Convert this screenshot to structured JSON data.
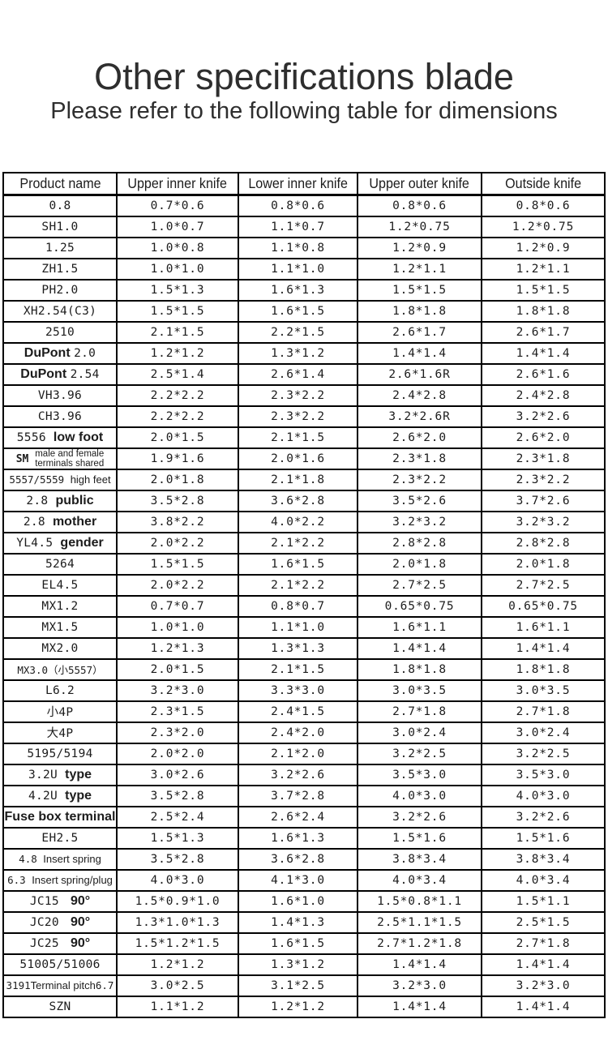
{
  "colors": {
    "text": "#1c1c1c",
    "title": "#2e2e2e",
    "border": "#000000",
    "background": "#ffffff"
  },
  "header": {
    "title": "Other specifications blade",
    "subtitle": "Please refer to the following table for dimensions"
  },
  "table": {
    "columns": [
      "Product name",
      "Upper inner knife",
      "Lower inner knife",
      "Upper outer knife",
      "Outside knife"
    ],
    "rows": [
      {
        "name": [
          {
            "t": "0.8",
            "s": "m"
          }
        ],
        "values": [
          "0.7*0.6",
          "0.8*0.6",
          "0.8*0.6",
          "0.8*0.6"
        ]
      },
      {
        "name": [
          {
            "t": "SH1.0",
            "s": "m"
          }
        ],
        "values": [
          "1.0*0.7",
          "1.1*0.7",
          "1.2*0.75",
          "1.2*0.75"
        ]
      },
      {
        "name": [
          {
            "t": "1.25",
            "s": "m"
          }
        ],
        "values": [
          "1.0*0.8",
          "1.1*0.8",
          "1.2*0.9",
          "1.2*0.9"
        ]
      },
      {
        "name": [
          {
            "t": "ZH1.5",
            "s": "m"
          }
        ],
        "values": [
          "1.0*1.0",
          "1.1*1.0",
          "1.2*1.1",
          "1.2*1.1"
        ]
      },
      {
        "name": [
          {
            "t": "PH2.0",
            "s": "m"
          }
        ],
        "values": [
          "1.5*1.3",
          "1.6*1.3",
          "1.5*1.5",
          "1.5*1.5"
        ]
      },
      {
        "name": [
          {
            "t": "XH2.54(C3)",
            "s": "m"
          }
        ],
        "values": [
          "1.5*1.5",
          "1.6*1.5",
          "1.8*1.8",
          "1.8*1.8"
        ]
      },
      {
        "name": [
          {
            "t": "2510",
            "s": "m"
          }
        ],
        "values": [
          "2.1*1.5",
          "2.2*1.5",
          "2.6*1.7",
          "2.6*1.7"
        ]
      },
      {
        "name": [
          {
            "t": "DuPont ",
            "s": "b"
          },
          {
            "t": "2.0",
            "s": "m"
          }
        ],
        "values": [
          "1.2*1.2",
          "1.3*1.2",
          "1.4*1.4",
          "1.4*1.4"
        ]
      },
      {
        "name": [
          {
            "t": "DuPont ",
            "s": "b"
          },
          {
            "t": "2.54",
            "s": "m"
          }
        ],
        "values": [
          "2.5*1.4",
          "2.6*1.4",
          "2.6*1.6R",
          "2.6*1.6"
        ]
      },
      {
        "name": [
          {
            "t": "VH3.96",
            "s": "m"
          }
        ],
        "values": [
          "2.2*2.2",
          "2.3*2.2",
          "2.4*2.8",
          "2.4*2.8"
        ]
      },
      {
        "name": [
          {
            "t": "CH3.96",
            "s": "m"
          }
        ],
        "values": [
          "2.2*2.2",
          "2.3*2.2",
          "3.2*2.6R",
          "3.2*2.6"
        ]
      },
      {
        "name": [
          {
            "t": "5556 ",
            "s": "m"
          },
          {
            "t": "low foot",
            "s": "b"
          }
        ],
        "values": [
          "2.0*1.5",
          "2.1*1.5",
          "2.6*2.0",
          "2.6*2.0"
        ]
      },
      {
        "name": [
          {
            "t": "SM ",
            "s": "mb"
          },
          {
            "t": "male and female\nterminals shared",
            "s": "c2"
          }
        ],
        "values": [
          "1.9*1.6",
          "2.0*1.6",
          "2.3*1.8",
          "2.3*1.8"
        ]
      },
      {
        "name": [
          {
            "t": "5557/5559 ",
            "s": "m2"
          },
          {
            "t": "high feet",
            "s": "c"
          }
        ],
        "values": [
          "2.0*1.8",
          "2.1*1.8",
          "2.3*2.2",
          "2.3*2.2"
        ]
      },
      {
        "name": [
          {
            "t": "2.8 ",
            "s": "m"
          },
          {
            "t": "public",
            "s": "b"
          }
        ],
        "values": [
          "3.5*2.8",
          "3.6*2.8",
          "3.5*2.6",
          "3.7*2.6"
        ]
      },
      {
        "name": [
          {
            "t": "2.8 ",
            "s": "m"
          },
          {
            "t": "mother",
            "s": "b"
          }
        ],
        "values": [
          "3.8*2.2",
          "4.0*2.2",
          "3.2*3.2",
          "3.2*3.2"
        ]
      },
      {
        "name": [
          {
            "t": "YL4.5 ",
            "s": "m"
          },
          {
            "t": "gender",
            "s": "b"
          }
        ],
        "values": [
          "2.0*2.2",
          "2.1*2.2",
          "2.8*2.8",
          "2.8*2.8"
        ]
      },
      {
        "name": [
          {
            "t": "5264",
            "s": "m"
          }
        ],
        "values": [
          "1.5*1.5",
          "1.6*1.5",
          "2.0*1.8",
          "2.0*1.8"
        ]
      },
      {
        "name": [
          {
            "t": "EL4.5",
            "s": "m"
          }
        ],
        "values": [
          "2.0*2.2",
          "2.1*2.2",
          "2.7*2.5",
          "2.7*2.5"
        ]
      },
      {
        "name": [
          {
            "t": "MX1.2",
            "s": "m"
          }
        ],
        "values": [
          "0.7*0.7",
          "0.8*0.7",
          "0.65*0.75",
          "0.65*0.75"
        ]
      },
      {
        "name": [
          {
            "t": "MX1.5",
            "s": "m"
          }
        ],
        "values": [
          "1.0*1.0",
          "1.1*1.0",
          "1.6*1.1",
          "1.6*1.1"
        ]
      },
      {
        "name": [
          {
            "t": "MX2.0",
            "s": "m"
          }
        ],
        "values": [
          "1.2*1.3",
          "1.3*1.3",
          "1.4*1.4",
          "1.4*1.4"
        ]
      },
      {
        "name": [
          {
            "t": "MX3.0（小5557）",
            "s": "m2"
          }
        ],
        "values": [
          "2.0*1.5",
          "2.1*1.5",
          "1.8*1.8",
          "1.8*1.8"
        ]
      },
      {
        "name": [
          {
            "t": "L6.2",
            "s": "m"
          }
        ],
        "values": [
          "3.2*3.0",
          "3.3*3.0",
          "3.0*3.5",
          "3.0*3.5"
        ]
      },
      {
        "name": [
          {
            "t": "小4P",
            "s": "m"
          }
        ],
        "values": [
          "2.3*1.5",
          "2.4*1.5",
          "2.7*1.8",
          "2.7*1.8"
        ]
      },
      {
        "name": [
          {
            "t": "大4P",
            "s": "m"
          }
        ],
        "values": [
          "2.3*2.0",
          "2.4*2.0",
          "3.0*2.4",
          "3.0*2.4"
        ]
      },
      {
        "name": [
          {
            "t": "5195/5194",
            "s": "m"
          }
        ],
        "values": [
          "2.0*2.0",
          "2.1*2.0",
          "3.2*2.5",
          "3.2*2.5"
        ]
      },
      {
        "name": [
          {
            "t": "3.2U ",
            "s": "m"
          },
          {
            "t": "type",
            "s": "b"
          }
        ],
        "values": [
          "3.0*2.6",
          "3.2*2.6",
          "3.5*3.0",
          "3.5*3.0"
        ]
      },
      {
        "name": [
          {
            "t": "4.2U ",
            "s": "m"
          },
          {
            "t": "type",
            "s": "b"
          }
        ],
        "values": [
          "3.5*2.8",
          "3.7*2.8",
          "4.0*3.0",
          "4.0*3.0"
        ]
      },
      {
        "name": [
          {
            "t": "Fuse box terminal",
            "s": "b"
          }
        ],
        "values": [
          "2.5*2.4",
          "2.6*2.4",
          "3.2*2.6",
          "3.2*2.6"
        ]
      },
      {
        "name": [
          {
            "t": "EH2.5",
            "s": "m"
          }
        ],
        "values": [
          "1.5*1.3",
          "1.6*1.3",
          "1.5*1.6",
          "1.5*1.6"
        ]
      },
      {
        "name": [
          {
            "t": "4.8 ",
            "s": "m2"
          },
          {
            "t": "Insert spring",
            "s": "c"
          }
        ],
        "values": [
          "3.5*2.8",
          "3.6*2.8",
          "3.8*3.4",
          "3.8*3.4"
        ]
      },
      {
        "name": [
          {
            "t": "6.3 ",
            "s": "m2"
          },
          {
            "t": "Insert spring/plug",
            "s": "c"
          }
        ],
        "values": [
          "4.0*3.0",
          "4.1*3.0",
          "4.0*3.4",
          "4.0*3.4"
        ]
      },
      {
        "name": [
          {
            "t": "JC15",
            "s": "mw"
          },
          {
            "t": "90°",
            "s": "b"
          }
        ],
        "values": [
          "1.5*0.9*1.0",
          "1.6*1.0",
          "1.5*0.8*1.1",
          "1.5*1.1"
        ]
      },
      {
        "name": [
          {
            "t": "JC20",
            "s": "mw"
          },
          {
            "t": "90°",
            "s": "b"
          }
        ],
        "values": [
          "1.3*1.0*1.3",
          "1.4*1.3",
          "2.5*1.1*1.5",
          "2.5*1.5"
        ]
      },
      {
        "name": [
          {
            "t": "JC25",
            "s": "mw"
          },
          {
            "t": "90°",
            "s": "b"
          }
        ],
        "values": [
          "1.5*1.2*1.5",
          "1.6*1.5",
          "2.7*1.2*1.8",
          "2.7*1.8"
        ]
      },
      {
        "name": [
          {
            "t": "51005/51006",
            "s": "m"
          }
        ],
        "values": [
          "1.2*1.2",
          "1.3*1.2",
          "1.4*1.4",
          "1.4*1.4"
        ]
      },
      {
        "name": [
          {
            "t": "3191",
            "s": "m2"
          },
          {
            "t": "Terminal pitch",
            "s": "c"
          },
          {
            "t": "6.7",
            "s": "m2"
          }
        ],
        "values": [
          "3.0*2.5",
          "3.1*2.5",
          "3.2*3.0",
          "3.2*3.0"
        ]
      },
      {
        "name": [
          {
            "t": "SZN",
            "s": "m"
          }
        ],
        "values": [
          "1.1*1.2",
          "1.2*1.2",
          "1.4*1.4",
          "1.4*1.4"
        ]
      }
    ]
  }
}
